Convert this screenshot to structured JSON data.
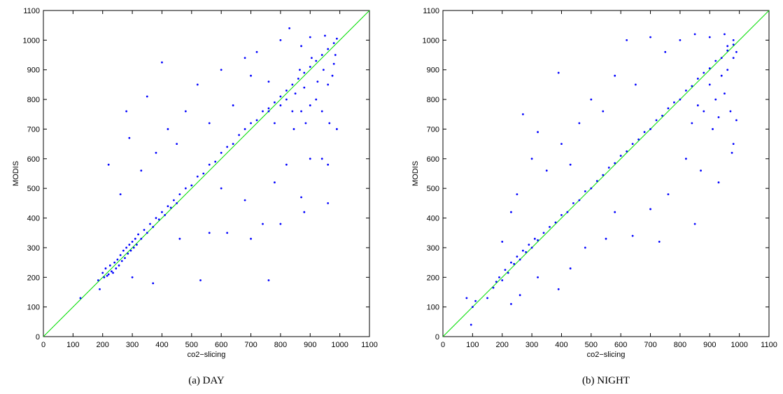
{
  "chart_data": [
    {
      "type": "scatter",
      "title": "(a) DAY",
      "x_label": "co2−slicing",
      "y_label": "MODIS",
      "xlim": [
        0,
        1100
      ],
      "ylim": [
        0,
        1100
      ],
      "xticks": [
        0,
        100,
        200,
        300,
        400,
        500,
        600,
        700,
        800,
        900,
        1000,
        1100
      ],
      "yticks": [
        0,
        100,
        200,
        300,
        400,
        500,
        600,
        700,
        800,
        900,
        1000,
        1100
      ],
      "diagonal": true,
      "diagonal_color": "#00dd00",
      "series": [
        {
          "color": "#0000ff",
          "x": [
            125,
            185,
            190,
            200,
            205,
            210,
            215,
            220,
            225,
            230,
            235,
            240,
            245,
            250,
            255,
            260,
            265,
            270,
            275,
            280,
            285,
            290,
            295,
            300,
            305,
            310,
            315,
            320,
            330,
            340,
            350,
            360,
            370,
            380,
            390,
            400,
            410,
            420,
            430,
            440,
            450,
            460,
            480,
            500,
            520,
            540,
            560,
            580,
            600,
            620,
            640,
            660,
            680,
            700,
            720,
            740,
            760,
            780,
            800,
            820,
            840,
            860,
            880,
            900,
            920,
            940,
            960,
            980,
            220,
            260,
            280,
            290,
            330,
            350,
            380,
            400,
            420,
            450,
            480,
            520,
            560,
            600,
            640,
            680,
            700,
            720,
            760,
            800,
            830,
            870,
            900,
            950,
            990,
            760,
            780,
            800,
            820,
            840,
            850,
            870,
            880,
            900,
            920,
            940,
            960,
            980,
            990,
            975,
            985,
            965,
            945,
            925,
            905,
            885,
            865,
            845,
            300,
            370,
            460,
            530,
            560,
            620,
            680,
            700,
            760,
            740,
            780,
            800,
            870,
            880,
            940,
            960,
            960,
            900,
            820,
            600
          ],
          "values": [
            130,
            190,
            160,
            215,
            200,
            230,
            205,
            210,
            240,
            220,
            215,
            250,
            230,
            260,
            240,
            275,
            255,
            290,
            265,
            300,
            280,
            310,
            290,
            320,
            300,
            330,
            310,
            345,
            330,
            360,
            350,
            380,
            370,
            400,
            395,
            420,
            410,
            440,
            435,
            460,
            450,
            480,
            500,
            510,
            540,
            550,
            580,
            590,
            620,
            640,
            650,
            680,
            700,
            720,
            730,
            760,
            770,
            790,
            810,
            830,
            850,
            870,
            890,
            910,
            930,
            950,
            970,
            990,
            580,
            480,
            760,
            670,
            560,
            810,
            620,
            925,
            700,
            650,
            760,
            850,
            720,
            900,
            780,
            940,
            880,
            960,
            860,
            1000,
            1040,
            980,
            1010,
            1015,
            1005,
            760,
            720,
            780,
            800,
            760,
            820,
            760,
            840,
            780,
            800,
            760,
            850,
            920,
            700,
            880,
            950,
            720,
            900,
            860,
            940,
            720,
            900,
            700,
            200,
            180,
            330,
            190,
            350,
            350,
            460,
            330,
            190,
            380,
            520,
            380,
            470,
            420,
            600,
            450,
            580,
            600,
            580,
            500
          ]
        }
      ]
    },
    {
      "type": "scatter",
      "title": "(b) NIGHT",
      "x_label": "co2−slicing",
      "y_label": "MODIS",
      "xlim": [
        0,
        1100
      ],
      "ylim": [
        0,
        1100
      ],
      "xticks": [
        0,
        100,
        200,
        300,
        400,
        500,
        600,
        700,
        800,
        900,
        1000,
        1100
      ],
      "yticks": [
        0,
        100,
        200,
        300,
        400,
        500,
        600,
        700,
        800,
        900,
        1000,
        1100
      ],
      "diagonal": true,
      "diagonal_color": "#00dd00",
      "series": [
        {
          "color": "#0000ff",
          "x": [
            80,
            95,
            100,
            110,
            150,
            170,
            180,
            190,
            200,
            210,
            220,
            230,
            240,
            250,
            260,
            270,
            280,
            290,
            300,
            310,
            320,
            340,
            360,
            380,
            400,
            420,
            440,
            460,
            480,
            500,
            520,
            540,
            560,
            580,
            600,
            620,
            640,
            660,
            680,
            700,
            720,
            740,
            760,
            780,
            800,
            820,
            840,
            860,
            880,
            900,
            920,
            940,
            960,
            980,
            200,
            230,
            250,
            270,
            300,
            320,
            350,
            390,
            400,
            430,
            460,
            500,
            540,
            580,
            620,
            650,
            700,
            750,
            800,
            850,
            900,
            950,
            980,
            900,
            920,
            940,
            960,
            980,
            990,
            970,
            950,
            930,
            910,
            990,
            975,
            960,
            860,
            840,
            880,
            230,
            260,
            320,
            390,
            430,
            480,
            550,
            580,
            640,
            700,
            730,
            760,
            820,
            850,
            870,
            930,
            980
          ],
          "values": [
            130,
            40,
            100,
            120,
            130,
            165,
            185,
            200,
            190,
            225,
            215,
            250,
            245,
            270,
            260,
            290,
            285,
            310,
            300,
            330,
            325,
            350,
            370,
            385,
            410,
            420,
            450,
            460,
            490,
            500,
            525,
            545,
            570,
            585,
            610,
            625,
            650,
            665,
            690,
            700,
            730,
            745,
            770,
            790,
            800,
            830,
            845,
            870,
            890,
            905,
            930,
            940,
            965,
            985,
            320,
            420,
            480,
            750,
            600,
            690,
            560,
            890,
            650,
            580,
            720,
            800,
            760,
            880,
            1000,
            850,
            1010,
            960,
            1000,
            1020,
            1010,
            1020,
            1000,
            850,
            800,
            880,
            900,
            940,
            960,
            760,
            820,
            740,
            700,
            730,
            620,
            980,
            780,
            720,
            760,
            110,
            140,
            200,
            160,
            230,
            300,
            330,
            420,
            340,
            430,
            320,
            480,
            600,
            380,
            560,
            520,
            650
          ]
        }
      ]
    }
  ]
}
